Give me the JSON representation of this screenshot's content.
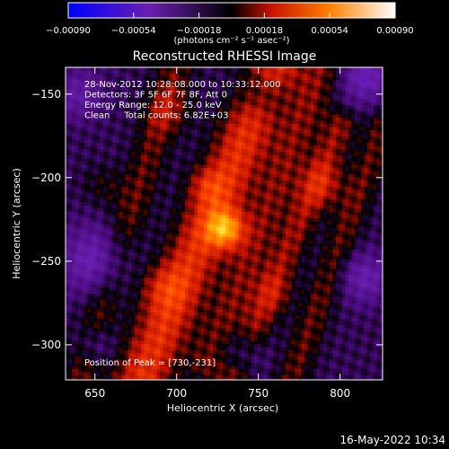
{
  "chart_data": {
    "type": "heatmap",
    "title": "Reconstructed RHESSI Image",
    "xlabel": "Heliocentric X (arcsec)",
    "ylabel": "Heliocentric Y (arcsec)",
    "xlim": [
      632,
      826
    ],
    "ylim": [
      -321,
      -134
    ],
    "x_ticks": [
      650,
      700,
      750,
      800
    ],
    "y_ticks": [
      -150,
      -200,
      -250,
      -300
    ],
    "colorbar": {
      "range": [
        -0.0009,
        0.0009
      ],
      "ticks": [
        "-0.00090",
        "-0.00054",
        "-0.00018",
        "0.00018",
        "0.00054",
        "0.00090"
      ],
      "label": "(photons cm⁻² s⁻¹ asec⁻²)"
    },
    "annotations": [
      "28-Nov-2012 10:28:08.000 to 10:33:12.000",
      "Detectors: 3F 5F 6F 7F 8F, Att 0",
      "Energy Range: 12.0 - 25.0 keV",
      "Clean     Total counts: 6.82E+03"
    ],
    "peak_text": "Position of Peak = [730,-231]",
    "peak_position": [
      730,
      -231
    ],
    "ridges": [
      {
        "x0": 678,
        "y0": -321,
        "x1": 760,
        "y1": -134,
        "w": 24,
        "a": 0.00042
      },
      {
        "x0": 720,
        "y0": -310,
        "x1": 790,
        "y1": -134,
        "w": 18,
        "a": 0.00022
      },
      {
        "x0": 735,
        "y0": -321,
        "x1": 800,
        "y1": -170,
        "w": 14,
        "a": 0.00025
      },
      {
        "x0": 640,
        "y0": -321,
        "x1": 700,
        "y1": -134,
        "w": 16,
        "a": 0.0002
      },
      {
        "x0": 770,
        "y0": -321,
        "x1": 826,
        "y1": -170,
        "w": 14,
        "a": 0.0002
      }
    ],
    "peaks": [
      {
        "x": 730,
        "y": -231,
        "s": 8,
        "a": 0.00055
      },
      {
        "x": 718,
        "y": -205,
        "s": 8,
        "a": 0.00018
      },
      {
        "x": 695,
        "y": -160,
        "s": 10,
        "a": 0.00015
      },
      {
        "x": 790,
        "y": -205,
        "s": 10,
        "a": 0.0002
      },
      {
        "x": 690,
        "y": -265,
        "s": 10,
        "a": 0.00018
      },
      {
        "x": 760,
        "y": -270,
        "s": 9,
        "a": 0.00012
      },
      {
        "x": 655,
        "y": -205,
        "s": 9,
        "a": 0.00012
      }
    ],
    "troughs": [
      {
        "x": 650,
        "y": -250,
        "s": 14,
        "a": -0.00035
      },
      {
        "x": 640,
        "y": -150,
        "s": 10,
        "a": -0.00025
      },
      {
        "x": 815,
        "y": -140,
        "s": 10,
        "a": -0.00035
      },
      {
        "x": 815,
        "y": -260,
        "s": 10,
        "a": -0.0003
      },
      {
        "x": 752,
        "y": -150,
        "s": 10,
        "a": -0.0002
      },
      {
        "x": 740,
        "y": -305,
        "s": 9,
        "a": -0.00025
      },
      {
        "x": 650,
        "y": -300,
        "s": 8,
        "a": -0.0002
      }
    ],
    "base": -0.00012
  },
  "timestamp": "16-May-2022 10:34"
}
